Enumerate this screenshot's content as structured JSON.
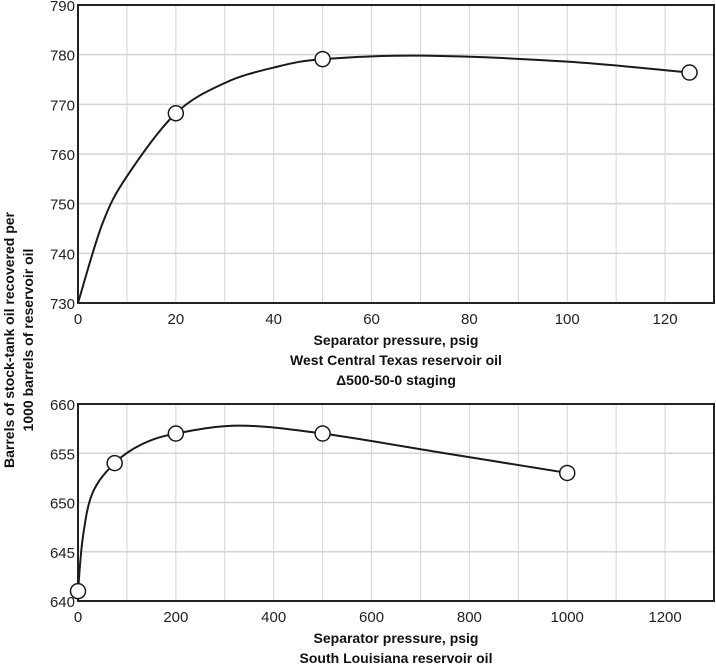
{
  "y_axis_label": [
    "Barrels of stock-tank oil recovered per",
    "1000 barrels of reservoir oil"
  ],
  "chart_data": [
    {
      "type": "line",
      "title": "West Central Texas reservoir oil",
      "subtitle": "Δ500-50-0 staging",
      "xlabel": "Separator pressure, psig",
      "ylabel": "Barrels of stock-tank oil recovered per 1000 barrels of reservoir oil",
      "xlim": [
        0,
        130
      ],
      "ylim": [
        730,
        790
      ],
      "xticks": [
        0,
        20,
        40,
        60,
        80,
        100,
        120
      ],
      "yticks": [
        730,
        740,
        750,
        760,
        770,
        780,
        790
      ],
      "x_minor_step": 10,
      "grid": true,
      "points": {
        "x": [
          20,
          50,
          125
        ],
        "y": [
          768.2,
          779.1,
          776.4
        ]
      },
      "curve": {
        "x": [
          0,
          5,
          10,
          20,
          30,
          40,
          50,
          70,
          100,
          125
        ],
        "y": [
          730,
          746,
          755.5,
          768.2,
          774.3,
          777.4,
          779.1,
          779.8,
          778.6,
          776.4
        ]
      }
    },
    {
      "type": "line",
      "title": "South Louisiana reservoir oil",
      "xlabel": "Separator pressure, psig",
      "ylabel": "Barrels of stock-tank oil recovered per 1000 barrels of reservoir oil",
      "xlim": [
        0,
        1300
      ],
      "ylim": [
        640,
        660
      ],
      "xticks": [
        0,
        200,
        400,
        600,
        800,
        1000,
        1200
      ],
      "yticks": [
        640,
        645,
        650,
        655,
        660
      ],
      "x_minor_step": 100,
      "grid": true,
      "points": {
        "x": [
          0,
          75,
          200,
          500,
          1000
        ],
        "y": [
          641,
          654,
          657,
          657,
          653
        ]
      },
      "curve": {
        "x": [
          0,
          10,
          30,
          75,
          130,
          200,
          330,
          500,
          750,
          1000
        ],
        "y": [
          641,
          646.5,
          651,
          654,
          655.9,
          657,
          657.8,
          657,
          655,
          653
        ]
      }
    }
  ]
}
